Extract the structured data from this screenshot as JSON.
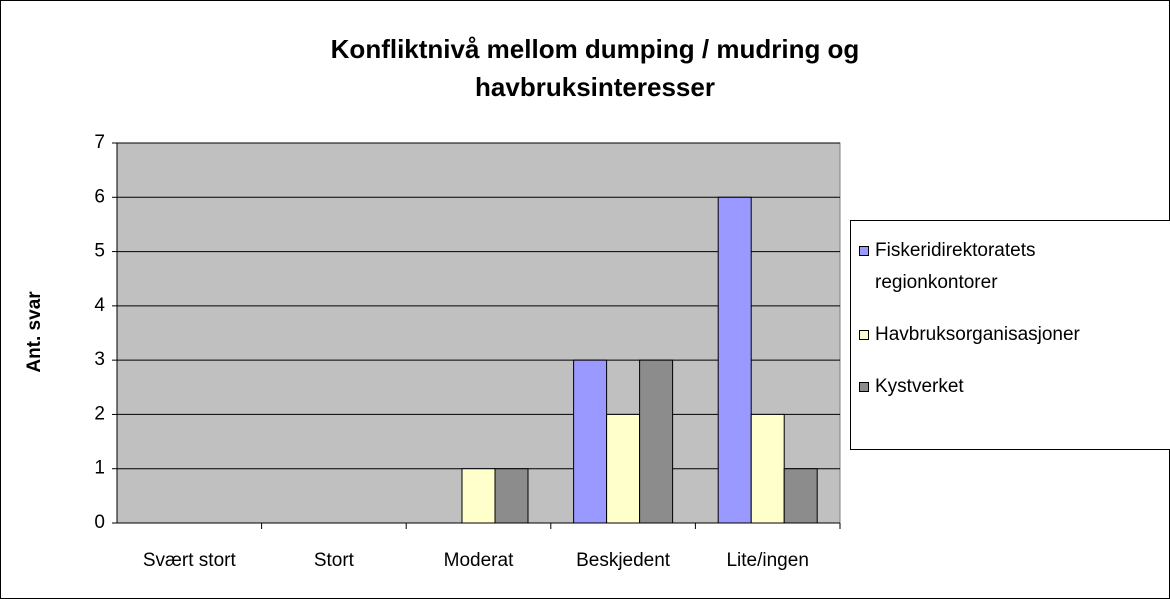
{
  "chart_data": {
    "type": "bar",
    "title": "Konfliktnivå mellom dumping / mudring og havbruksinteresser",
    "y_label": "Ant. svar",
    "categories": [
      "Svært stort",
      "Stort",
      "Moderat",
      "Beskjedent",
      "Lite/ingen"
    ],
    "series": [
      {
        "name": "Fiskeridirektoratets regionkontorer",
        "color": "#9999ff",
        "values": [
          0,
          0,
          0,
          3,
          6
        ]
      },
      {
        "name": "Havbruksorganisasjoner",
        "color": "#ffffcc",
        "values": [
          0,
          0,
          1,
          2,
          2
        ]
      },
      {
        "name": "Kystverket",
        "color": "#8c8c8c",
        "values": [
          0,
          0,
          1,
          3,
          1
        ]
      }
    ],
    "ylim": [
      0,
      7
    ],
    "yticks": [
      0,
      1,
      2,
      3,
      4,
      5,
      6,
      7
    ],
    "grid": true,
    "legend": "right"
  }
}
